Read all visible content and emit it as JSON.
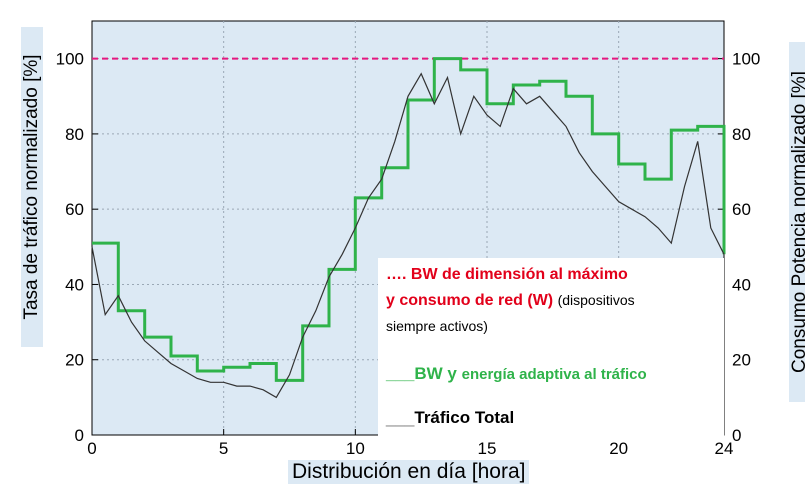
{
  "chart_data": {
    "type": "line",
    "xlabel": "Distribución  en día [hora]",
    "ylabel_left": "Tasa de tráfico normalizado [%]",
    "ylabel_right": "Consumo Potencia  normalizado [%]",
    "xlim": [
      0,
      24
    ],
    "ylim": [
      0,
      110
    ],
    "x_ticks": [
      0,
      5,
      10,
      15,
      20,
      24
    ],
    "y_ticks": [
      0,
      20,
      40,
      60,
      80,
      100
    ],
    "grid": true,
    "legend_position": "bottom-right",
    "colors": {
      "plot_bg": "#dce9f4",
      "max_line": "#e5177f",
      "adaptive": "#2fb34a",
      "traffic": "#333333",
      "grid": "#9aa8b5"
    },
    "legend": {
      "red_line1": "….  BW  de dimensión al máximo",
      "red_line2": "y consumo de red (W)",
      "red_note": "(dispositivos",
      "red_line3": "siempre activos)",
      "green_prefix": "___",
      "green_main": "BW y ",
      "green_rest": "energía adaptiva al tráfico",
      "black_prefix": "___",
      "black_label": "Tráfico Total"
    },
    "series": [
      {
        "name": "BW  de dimensión al máximo y consumo de red (W)",
        "style": "dashed",
        "x": [
          0,
          24
        ],
        "y": [
          100,
          100
        ]
      },
      {
        "name": "BW y energía adaptiva al tráfico",
        "style": "step",
        "x": [
          0,
          1,
          1,
          2,
          2,
          3,
          3,
          4,
          4,
          5,
          5,
          6,
          6,
          7,
          7,
          8,
          8,
          9,
          9,
          10,
          10,
          11,
          11,
          12,
          12,
          13,
          13,
          14,
          14,
          15,
          15,
          16,
          16,
          17,
          17,
          18,
          18,
          19,
          19,
          20,
          20,
          21,
          21,
          22,
          22,
          23,
          23,
          24,
          24
        ],
        "y": [
          51,
          51,
          33,
          33,
          26,
          26,
          21,
          21,
          17,
          17,
          18,
          18,
          19,
          19,
          14.5,
          14.5,
          29,
          29,
          44,
          44,
          63,
          63,
          71,
          71,
          89,
          89,
          100,
          100,
          97,
          97,
          88,
          88,
          93,
          93,
          94,
          94,
          90,
          90,
          80,
          80,
          72,
          72,
          68,
          68,
          81,
          81,
          82,
          82,
          48
        ]
      },
      {
        "name": "Tráfico Total",
        "style": "line",
        "x": [
          0,
          0.5,
          1,
          1.5,
          2,
          2.5,
          3,
          3.5,
          4,
          4.5,
          5,
          5.5,
          6,
          6.5,
          7,
          7.5,
          8,
          8.5,
          9,
          9.5,
          10,
          10.5,
          11,
          11.5,
          12,
          12.5,
          13,
          13.5,
          14,
          14.5,
          15,
          15.5,
          16,
          16.5,
          17,
          17.5,
          18,
          18.5,
          19,
          19.5,
          20,
          20.5,
          21,
          21.5,
          22,
          22.5,
          23,
          23.5,
          24
        ],
        "y": [
          50,
          32,
          37,
          30,
          25,
          22,
          19,
          17,
          15,
          14,
          14,
          13,
          13,
          12,
          10,
          16,
          26,
          33,
          42,
          48,
          55,
          63,
          68,
          78,
          90,
          96,
          88,
          95,
          80,
          90,
          85,
          82,
          92,
          88,
          90,
          86,
          82,
          75,
          70,
          66,
          62,
          60,
          58,
          55,
          51,
          66,
          78,
          55,
          48
        ]
      }
    ]
  }
}
